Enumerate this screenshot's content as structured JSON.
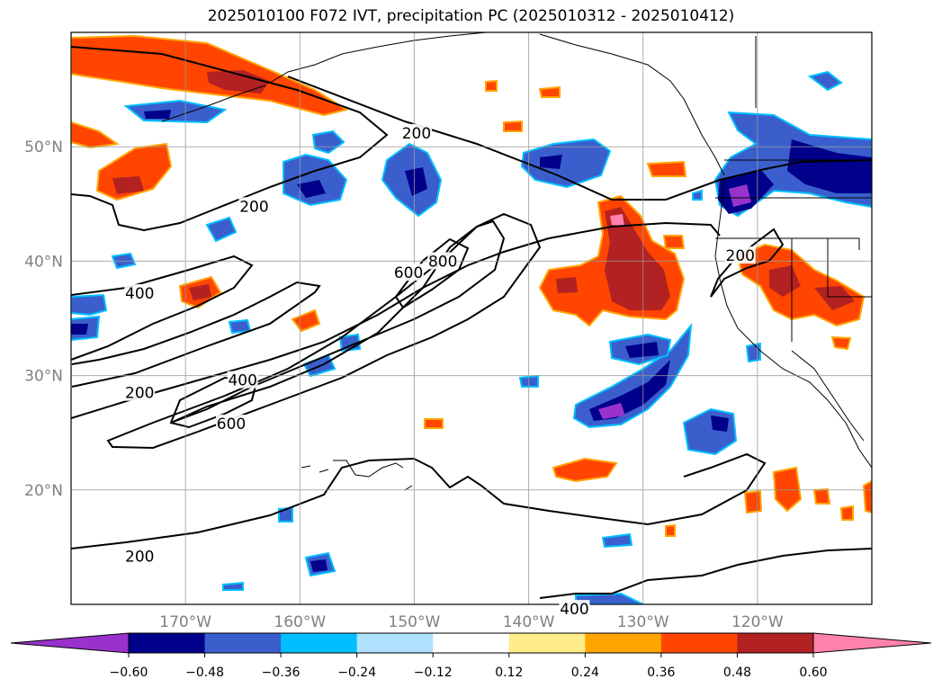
{
  "title": "2025010100 F072 IVT, precipitation PC (2025010312 - 2025010412)",
  "map": {
    "lat_labels": [
      {
        "lat": 50,
        "text": "50°N"
      },
      {
        "lat": 40,
        "text": "40°N"
      },
      {
        "lat": 30,
        "text": "30°N"
      },
      {
        "lat": 20,
        "text": "20°N"
      }
    ],
    "lon_labels": [
      {
        "lon": -170,
        "text": "170°W"
      },
      {
        "lon": -160,
        "text": "160°W"
      },
      {
        "lon": -150,
        "text": "150°W"
      },
      {
        "lon": -140,
        "text": "140°W"
      },
      {
        "lon": -130,
        "text": "130°W"
      },
      {
        "lon": -120,
        "text": "120°W"
      }
    ],
    "contour_labels": [
      {
        "text": "200",
        "lon": -149.8,
        "lat": 51.2
      },
      {
        "text": "200",
        "lon": -164,
        "lat": 44.8
      },
      {
        "text": "400",
        "lon": -174,
        "lat": 37.2
      },
      {
        "text": "400",
        "lon": -165,
        "lat": 29.6
      },
      {
        "text": "200",
        "lon": -174,
        "lat": 28.5
      },
      {
        "text": "600",
        "lon": -166,
        "lat": 25.8
      },
      {
        "text": "600",
        "lon": -150.5,
        "lat": 39
      },
      {
        "text": "800",
        "lon": -147.5,
        "lat": 40
      },
      {
        "text": "200",
        "lon": -121.5,
        "lat": 40.5
      },
      {
        "text": "200",
        "lon": -174,
        "lat": 14.2
      },
      {
        "text": "400",
        "lon": -136,
        "lat": 9.6
      }
    ]
  },
  "colorbar": {
    "ticks": [
      "-0.60",
      "-0.48",
      "-0.36",
      "-0.24",
      "-0.12",
      "0.12",
      "0.24",
      "0.36",
      "0.48",
      "0.60"
    ],
    "colors": [
      "#9932cc",
      "#00008b",
      "#3a5fcd",
      "#00bfff",
      "#b0e2ff",
      "#ffffff",
      "#ffec8b",
      "#ffa500",
      "#ff4500",
      "#b22222",
      "#ff82ab"
    ]
  }
}
